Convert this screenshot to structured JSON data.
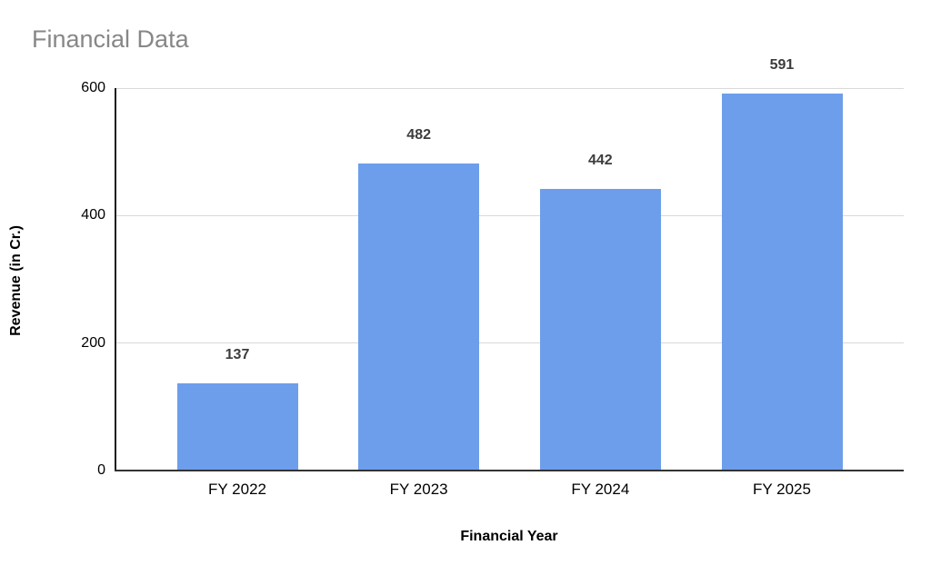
{
  "colors": {
    "bar": "#6d9eeb",
    "title_text": "#878787",
    "data_label": "#3c3c3c",
    "gridline": "#d9d9d9",
    "axis_line": "#333333",
    "tick_text": "#000000"
  },
  "chart_data": {
    "type": "bar",
    "title": "Financial Data",
    "xlabel": "Financial Year",
    "ylabel": "Revenue (in Cr.)",
    "categories": [
      "FY 2022",
      "FY 2023",
      "FY 2024",
      "FY 2025"
    ],
    "values": [
      137,
      482,
      442,
      591
    ],
    "data_labels": [
      "137",
      "482",
      "442",
      "591"
    ],
    "yticks": [
      0,
      200,
      400,
      600
    ],
    "ylim": [
      0,
      600
    ],
    "grid": true,
    "legend_position": "none"
  }
}
